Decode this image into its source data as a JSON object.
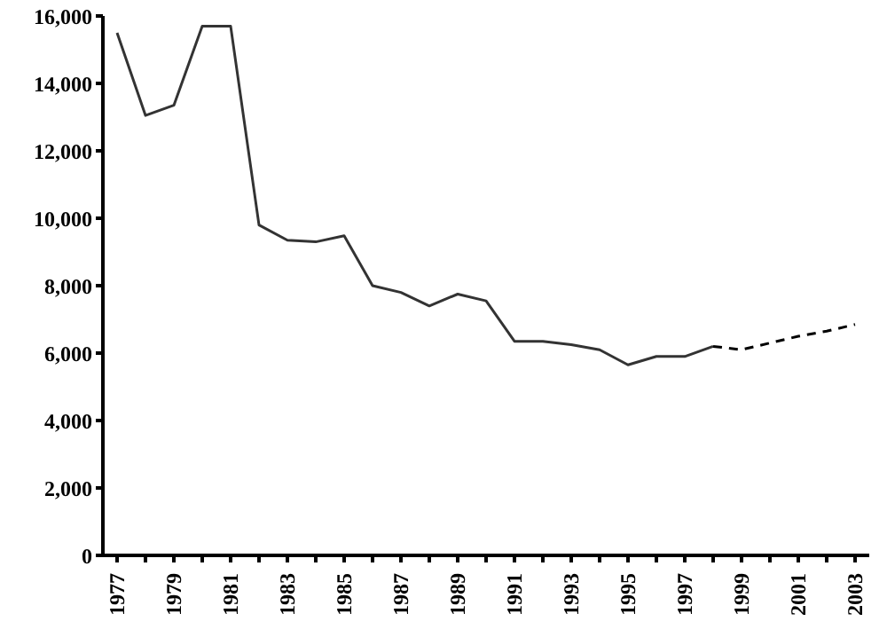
{
  "chart_data": {
    "type": "line",
    "categories": [
      "1977",
      null,
      "1979",
      null,
      "1981",
      null,
      "1983",
      null,
      "1985",
      null,
      "1987",
      null,
      "1989",
      null,
      "1991",
      null,
      "1993",
      null,
      "1995",
      null,
      "1997",
      null,
      "1999",
      null,
      "2001",
      null,
      "2003"
    ],
    "series": [
      {
        "color": "#333333",
        "line_style": "solid",
        "values": [
          15500,
          13050,
          13350,
          15700,
          15700,
          9800,
          9350,
          9300,
          9480,
          8000,
          7800,
          7400,
          7750,
          7550,
          6350,
          6350,
          6250,
          6100,
          5650,
          5900,
          5900,
          6200,
          null,
          null,
          null,
          null,
          null
        ]
      },
      {
        "color": "#000000",
        "line_style": "dashed",
        "values": [
          null,
          null,
          null,
          null,
          null,
          null,
          null,
          null,
          null,
          null,
          null,
          null,
          null,
          null,
          null,
          null,
          null,
          null,
          null,
          null,
          null,
          6200,
          6100,
          6300,
          6500,
          6650,
          6850
        ]
      }
    ],
    "ylim": [
      0,
      16000
    ],
    "yticks": [
      0,
      {
        "value": 2000,
        "label": "2,000"
      },
      {
        "value": 4000,
        "label": "4,000"
      },
      {
        "value": 6000,
        "label": "6,000"
      },
      {
        "value": 8000,
        "label": "8,000"
      },
      {
        "value": 10000,
        "label": "10,000"
      },
      {
        "value": 12000,
        "label": "12,000"
      },
      {
        "value": 14000,
        "label": "14,000"
      },
      {
        "value": 16000,
        "label": "16,000"
      }
    ],
    "grid": false,
    "legend": false,
    "marker": "none"
  }
}
